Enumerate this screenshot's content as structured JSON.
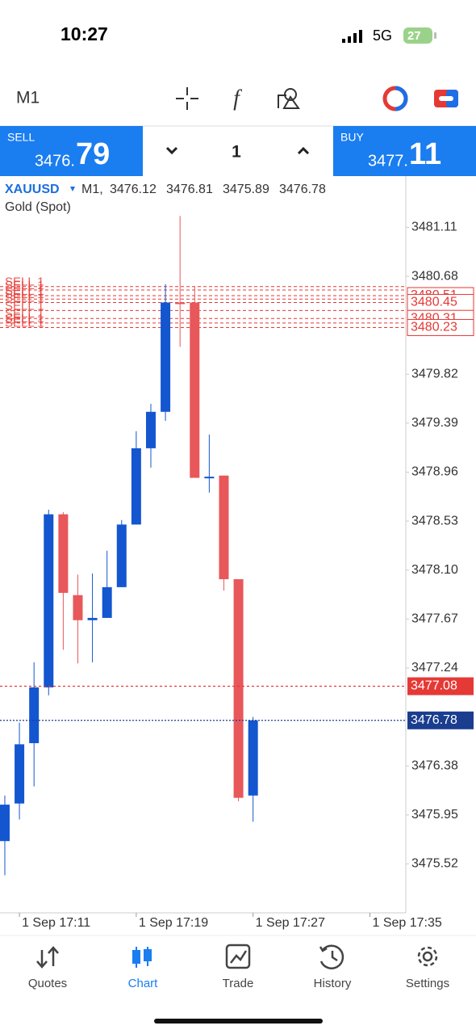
{
  "status_bar": {
    "time": "10:27",
    "network": "5G",
    "battery": "27"
  },
  "toolbar": {
    "timeframe": "M1"
  },
  "trade_panel": {
    "sell_label": "SELL",
    "sell_price_head": "3476.",
    "sell_price_tail": "79",
    "volume": "1",
    "buy_label": "BUY",
    "buy_price_head": "3477.",
    "buy_price_tail": "11"
  },
  "chart_data": {
    "type": "candlestick",
    "symbol": "XAUUSD",
    "period": "M1,",
    "description": "Gold (Spot)",
    "x": [
      10,
      11,
      12,
      13,
      14,
      15,
      16,
      17,
      18,
      19,
      20,
      21,
      22,
      23,
      24,
      25,
      26,
      27
    ],
    "open": [
      3475.72,
      3476.05,
      3476.58,
      3477.07,
      3478.59,
      3477.88,
      3477.66,
      3477.68,
      3477.95,
      3478.5,
      3479.17,
      3479.49,
      3480.45,
      3480.45,
      3478.91,
      3478.93,
      3478.02,
      3476.12
    ],
    "high": [
      3476.12,
      3476.76,
      3477.29,
      3478.63,
      3478.61,
      3478.06,
      3478.07,
      3478.27,
      3478.54,
      3479.32,
      3479.56,
      3480.61,
      3481.21,
      3480.59,
      3479.29,
      3478.93,
      3478.02,
      3476.81
    ],
    "low": [
      3475.42,
      3475.91,
      3476.2,
      3477.0,
      3477.4,
      3477.28,
      3477.29,
      3477.68,
      3477.95,
      3478.5,
      3479.0,
      3479.41,
      3480.06,
      3478.91,
      3478.78,
      3477.92,
      3476.07,
      3475.89
    ],
    "close": [
      3476.04,
      3476.57,
      3477.07,
      3478.59,
      3477.9,
      3477.66,
      3477.68,
      3477.95,
      3478.5,
      3479.17,
      3479.49,
      3480.45,
      3480.44,
      3478.91,
      3478.92,
      3478.02,
      3476.1,
      3476.78
    ],
    "up_color": "#1356d0",
    "down_color": "#e8575a",
    "ylim": [
      3475.09,
      3481.56
    ],
    "yticks": [
      3481.11,
      3480.68,
      3479.82,
      3479.39,
      3478.96,
      3478.53,
      {
        "value": 3478.1,
        "label": "3478.10"
      },
      3477.67,
      3477.24,
      3476.38,
      3475.95,
      3475.52
    ],
    "xlim": [
      9.67,
      37.46
    ],
    "xticks": [
      {
        "value": 11,
        "label": "1 Sep 17:11"
      },
      {
        "value": 19,
        "label": "1 Sep 17:19"
      },
      {
        "value": 27,
        "label": "1 Sep 17:27"
      },
      {
        "value": 35,
        "label": "1 Sep 17:35"
      }
    ],
    "order_lines": {
      "label": "SELL 1",
      "color": "#e53935",
      "prices": [
        3480.59,
        3480.56,
        3480.51,
        3480.48,
        3480.45,
        3480.38,
        3480.31,
        3480.27,
        3480.23
      ]
    },
    "order_tags": [
      3480.51,
      3480.45,
      3480.31,
      3480.23
    ],
    "ask": 3477.08,
    "ask_color": "#e53935",
    "bid": 3476.78,
    "bid_color": "#1a3d8f"
  },
  "nav": {
    "items": [
      "Quotes",
      "Chart",
      "Trade",
      "History",
      "Settings"
    ],
    "active": 1
  }
}
